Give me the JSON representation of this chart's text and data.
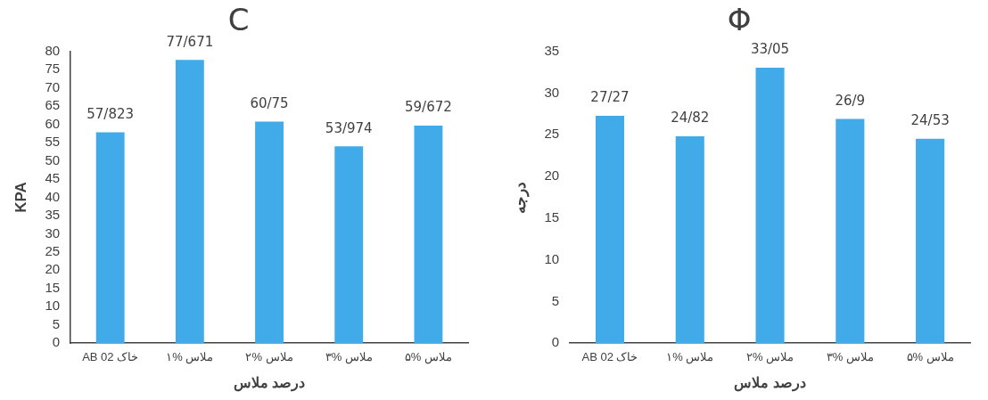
{
  "chart_data": [
    {
      "type": "bar",
      "title": "C",
      "xlabel": "درصد ملاس",
      "ylabel": "KPA",
      "categories": [
        "خاک AB 02",
        "ملاس %۱",
        "ملاس %۲",
        "ملاس %۳",
        "ملاس %۵"
      ],
      "values": [
        57.823,
        77.671,
        60.75,
        53.974,
        59.672
      ],
      "value_labels": [
        "57/823",
        "77/671",
        "60/75",
        "53/974",
        "59/672"
      ],
      "color": "#41abe9",
      "ylim": [
        0,
        80
      ],
      "yticks": [
        0,
        5,
        10,
        15,
        20,
        25,
        30,
        35,
        40,
        45,
        50,
        55,
        60,
        65,
        70,
        75,
        80
      ],
      "grid": false,
      "legend": false
    },
    {
      "type": "bar",
      "title": "Φ",
      "xlabel": "درصد ملاس",
      "ylabel": "درجه",
      "categories": [
        "خاک AB 02",
        "ملاس %۱",
        "ملاس %۲",
        "ملاس %۳",
        "ملاس %۵"
      ],
      "values": [
        27.27,
        24.82,
        33.05,
        26.9,
        24.53
      ],
      "value_labels": [
        "27/27",
        "24/82",
        "33/05",
        "26/9",
        "24/53"
      ],
      "color": "#41abe9",
      "ylim": [
        0,
        35
      ],
      "yticks": [
        0,
        5,
        10,
        15,
        20,
        25,
        30,
        35
      ],
      "grid": false,
      "legend": false
    }
  ]
}
